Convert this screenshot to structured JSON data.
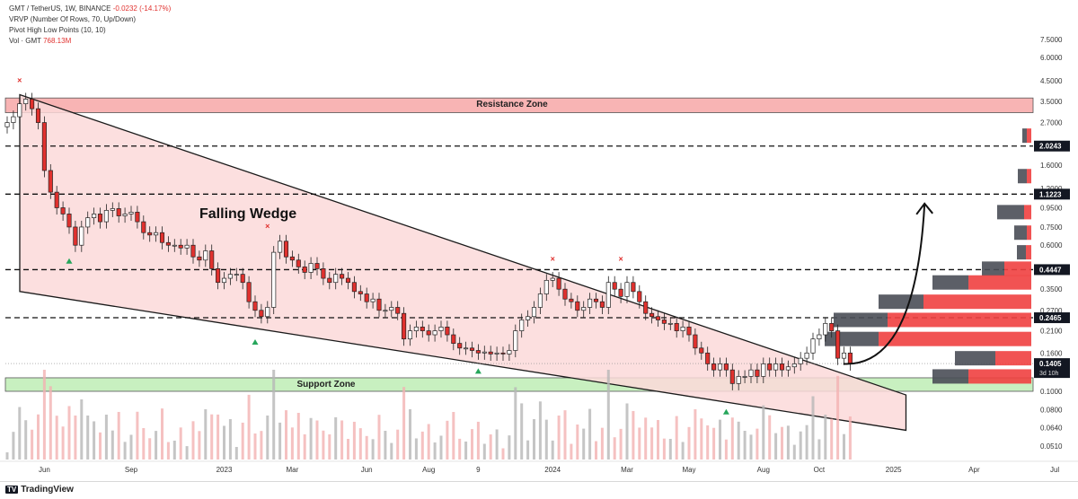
{
  "header": {
    "symbol_line": "GMT / TetherUS, 1W, BINANCE",
    "change": "-0.0232 (-14.17%)",
    "indicator_1": "VRVP (Number Of Rows, 70, Up/Down)",
    "indicator_2": "Pivot High Low Points (10, 10)",
    "vol_label": "Vol · GMT",
    "vol_value": "768.13M"
  },
  "footer": {
    "brand": "TradingView",
    "mark": "TV"
  },
  "colors": {
    "up": "#26a69a",
    "down": "#ef5350",
    "candle_up": "#ffffff",
    "candle_down": "#e0312e",
    "resistance": "#f8b4b4",
    "support": "#c8f0c0",
    "wedge": "#fbd9d9",
    "volume_up": "#b7b7b7",
    "volume_down": "#f3b1b1"
  },
  "chart_data": {
    "type": "candlestick",
    "annotations": {
      "resistance_zone": "Resistance Zone",
      "support_zone": "Support Zone",
      "pattern": "Falling Wedge"
    },
    "x_ticks": [
      "Jun",
      "Sep",
      "2023",
      "Mar",
      "Jun",
      "Aug",
      "9",
      "2024",
      "Mar",
      "May",
      "Aug",
      "Oct",
      "2025",
      "Apr",
      "Jul"
    ],
    "x_tick_weeks": [
      6,
      20,
      35,
      46,
      58,
      68,
      76,
      88,
      100,
      110,
      122,
      131,
      143,
      156,
      169
    ],
    "y_scale": "log",
    "y_ticks": [
      "7.5000",
      "6.0000",
      "4.5000",
      "3.5000",
      "2.7000",
      "1.6000",
      "1.2000",
      "0.9500",
      "0.7500",
      "0.6000",
      "0.3500",
      "0.2700",
      "0.2100",
      "0.1600",
      "0.1000",
      "0.0800",
      "0.0640",
      "0.0510"
    ],
    "y_tick_values": [
      7.5,
      6.0,
      4.5,
      3.5,
      2.7,
      1.6,
      1.2,
      0.95,
      0.75,
      0.6,
      0.35,
      0.27,
      0.21,
      0.16,
      0.1,
      0.08,
      0.064,
      0.051
    ],
    "price_labels": [
      {
        "label": "2.0243",
        "value": 2.0243
      },
      {
        "label": "1.1223",
        "value": 1.1223
      },
      {
        "label": "0.4447",
        "value": 0.4447
      },
      {
        "label": "0.2465",
        "value": 0.2465
      }
    ],
    "current_price": {
      "label": "0.1405",
      "sub": "3d 10h",
      "value": 0.1405
    },
    "resistance_zone": [
      3.05,
      3.65
    ],
    "support_zone": [
      0.1,
      0.118
    ],
    "dashed_levels": [
      2.0243,
      1.1223,
      0.4447,
      0.2465
    ],
    "wedge": {
      "upper": [
        {
          "week": 0,
          "price": 3.8
        },
        {
          "week": 130,
          "price": 0.14
        }
      ],
      "lower": [
        {
          "week": 0,
          "price": 0.34
        },
        {
          "week": 145,
          "price": 0.062
        }
      ],
      "close_week": 145
    },
    "candles_close": [
      2.7,
      2.9,
      3.4,
      3.6,
      3.2,
      2.7,
      1.5,
      1.15,
      0.95,
      0.88,
      0.75,
      0.6,
      0.75,
      0.84,
      0.88,
      0.8,
      0.92,
      0.94,
      0.86,
      0.88,
      0.9,
      0.8,
      0.7,
      0.68,
      0.7,
      0.62,
      0.6,
      0.6,
      0.58,
      0.6,
      0.52,
      0.5,
      0.56,
      0.45,
      0.38,
      0.4,
      0.42,
      0.42,
      0.38,
      0.3,
      0.27,
      0.25,
      0.28,
      0.55,
      0.63,
      0.52,
      0.5,
      0.46,
      0.43,
      0.48,
      0.45,
      0.4,
      0.38,
      0.42,
      0.4,
      0.38,
      0.34,
      0.33,
      0.3,
      0.31,
      0.27,
      0.27,
      0.28,
      0.26,
      0.19,
      0.21,
      0.22,
      0.21,
      0.2,
      0.21,
      0.22,
      0.2,
      0.18,
      0.17,
      0.17,
      0.165,
      0.16,
      0.162,
      0.158,
      0.16,
      0.158,
      0.165,
      0.21,
      0.24,
      0.25,
      0.28,
      0.33,
      0.39,
      0.4,
      0.35,
      0.31,
      0.3,
      0.27,
      0.28,
      0.31,
      0.3,
      0.28,
      0.38,
      0.35,
      0.32,
      0.38,
      0.34,
      0.3,
      0.26,
      0.25,
      0.24,
      0.23,
      0.23,
      0.21,
      0.22,
      0.2,
      0.17,
      0.16,
      0.14,
      0.13,
      0.14,
      0.13,
      0.11,
      0.12,
      0.12,
      0.13,
      0.12,
      0.14,
      0.13,
      0.14,
      0.13,
      0.135,
      0.14,
      0.15,
      0.16,
      0.19,
      0.2,
      0.23,
      0.21,
      0.15,
      0.16,
      0.14
    ],
    "pivot_highs": [
      {
        "week": 2,
        "price": 4.2
      },
      {
        "week": 42,
        "price": 0.7
      },
      {
        "week": 88,
        "price": 0.47
      },
      {
        "week": 99,
        "price": 0.47
      }
    ],
    "pivot_lows": [
      {
        "week": 10,
        "price": 0.54
      },
      {
        "week": 40,
        "price": 0.2
      },
      {
        "week": 76,
        "price": 0.14
      },
      {
        "week": 116,
        "price": 0.085
      }
    ],
    "vrvp": [
      {
        "price": 0.45,
        "up": 25,
        "down": 30
      },
      {
        "price": 0.38,
        "up": 40,
        "down": 70
      },
      {
        "price": 0.3,
        "up": 50,
        "down": 120
      },
      {
        "price": 0.24,
        "up": 60,
        "down": 160
      },
      {
        "price": 0.19,
        "up": 60,
        "down": 170
      },
      {
        "price": 0.15,
        "up": 45,
        "down": 40
      },
      {
        "price": 0.12,
        "up": 40,
        "down": 70
      },
      {
        "price": 0.55,
        "up": 10,
        "down": 6
      },
      {
        "price": 0.7,
        "up": 14,
        "down": 5
      },
      {
        "price": 0.9,
        "up": 30,
        "down": 8
      },
      {
        "price": 1.4,
        "up": 10,
        "down": 5
      },
      {
        "price": 2.3,
        "up": 5,
        "down": 5
      }
    ],
    "projection": {
      "from": {
        "week": 132,
        "price": 0.14
      },
      "to": {
        "week": 148,
        "price": 1.0
      }
    }
  }
}
